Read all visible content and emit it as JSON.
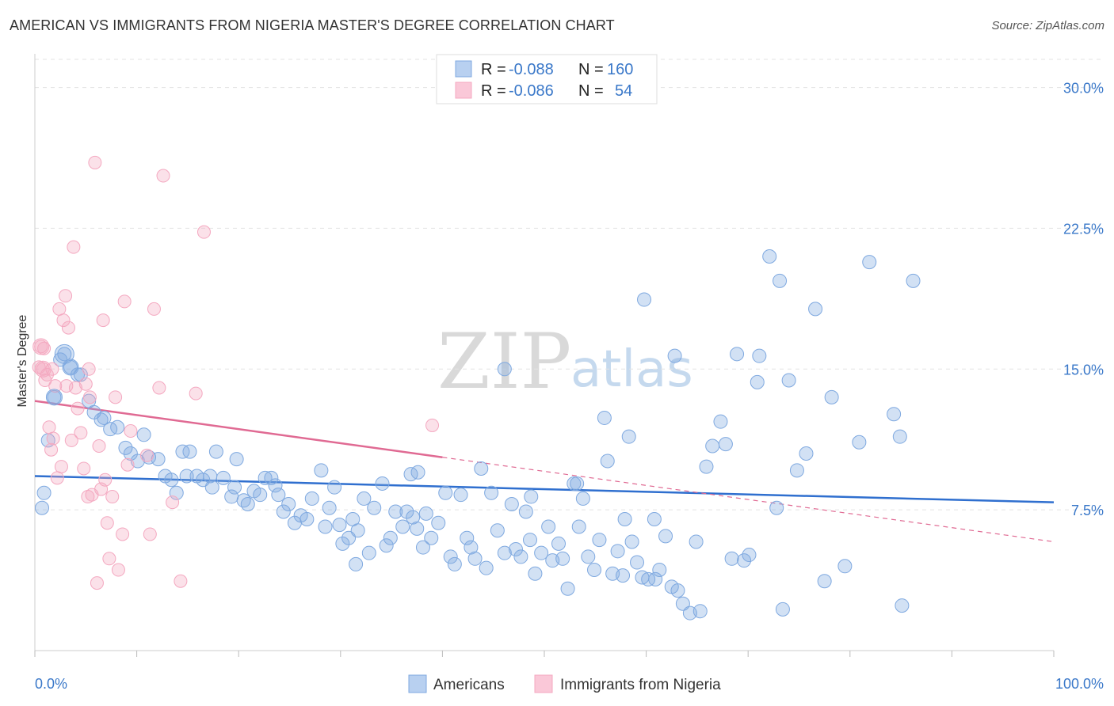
{
  "title": "AMERICAN VS IMMIGRANTS FROM NIGERIA MASTER'S DEGREE CORRELATION CHART",
  "source": "Source: ZipAtlas.com",
  "watermark": {
    "zip": "ZIP",
    "atlas": "atlas"
  },
  "legend": {
    "r_label": "R =",
    "n_label": "N =",
    "rows": [
      {
        "r": "-0.088",
        "n": "160"
      },
      {
        "r": "-0.086",
        "n": "54"
      }
    ]
  },
  "bottom_legend": [
    "Americans",
    "Immigrants from Nigeria"
  ],
  "chart_data": {
    "type": "scatter",
    "title": "AMERICAN VS IMMIGRANTS FROM NIGERIA MASTER'S DEGREE CORRELATION CHART",
    "xlabel": "",
    "ylabel": "Master's Degree",
    "xlim": [
      0,
      100
    ],
    "ylim": [
      0,
      31.5
    ],
    "x_tick_labels": [
      "0.0%",
      "100.0%"
    ],
    "y_ticks": [
      7.5,
      15.0,
      22.5,
      30.0
    ],
    "y_tick_labels": [
      "7.5%",
      "15.0%",
      "22.5%",
      "30.0%"
    ],
    "grid": true,
    "colors": {
      "americans": "#7fa9e0",
      "americans_line": "#2f6fcf",
      "nigeria": "#f4a8c0",
      "nigeria_line": "#e06a93",
      "tick": "#3a78c9"
    },
    "series": [
      {
        "name": "Americans",
        "trend": {
          "x0": 0,
          "y0": 9.3,
          "x1": 100,
          "y1": 7.9
        },
        "points": [
          [
            0.7,
            7.6
          ],
          [
            0.9,
            8.4
          ],
          [
            1.3,
            11.2
          ],
          [
            1.9,
            13.5
          ],
          [
            2.5,
            15.5
          ],
          [
            2.9,
            15.8
          ],
          [
            3.5,
            15.1
          ],
          [
            4.2,
            14.7
          ],
          [
            4.5,
            14.7
          ],
          [
            5.3,
            13.3
          ],
          [
            5.8,
            12.7
          ],
          [
            6.5,
            12.3
          ],
          [
            6.8,
            12.4
          ],
          [
            7.4,
            11.8
          ],
          [
            8.1,
            11.9
          ],
          [
            8.9,
            10.8
          ],
          [
            9.4,
            10.5
          ],
          [
            10.1,
            10.1
          ],
          [
            10.7,
            11.5
          ],
          [
            11.2,
            10.3
          ],
          [
            12.1,
            10.2
          ],
          [
            12.8,
            9.3
          ],
          [
            13.4,
            9.1
          ],
          [
            13.9,
            8.4
          ],
          [
            14.5,
            10.6
          ],
          [
            14.9,
            9.3
          ],
          [
            15.2,
            10.6
          ],
          [
            15.9,
            9.3
          ],
          [
            16.5,
            9.1
          ],
          [
            17.2,
            9.3
          ],
          [
            17.4,
            8.7
          ],
          [
            17.8,
            10.6
          ],
          [
            18.5,
            9.2
          ],
          [
            19.3,
            8.2
          ],
          [
            19.8,
            10.2
          ],
          [
            20.5,
            8.0
          ],
          [
            20.9,
            7.8
          ],
          [
            21.5,
            8.5
          ],
          [
            22.1,
            8.3
          ],
          [
            22.6,
            9.2
          ],
          [
            23.2,
            9.2
          ],
          [
            23.6,
            8.8
          ],
          [
            23.9,
            8.3
          ],
          [
            24.4,
            7.4
          ],
          [
            24.9,
            7.8
          ],
          [
            25.5,
            6.8
          ],
          [
            26.1,
            7.2
          ],
          [
            26.7,
            7.0
          ],
          [
            27.2,
            8.1
          ],
          [
            28.1,
            9.6
          ],
          [
            28.5,
            6.6
          ],
          [
            28.9,
            7.6
          ],
          [
            29.4,
            8.7
          ],
          [
            30.2,
            5.7
          ],
          [
            30.8,
            6.0
          ],
          [
            31.2,
            7.0
          ],
          [
            31.7,
            6.4
          ],
          [
            32.3,
            8.1
          ],
          [
            32.8,
            5.2
          ],
          [
            33.3,
            7.6
          ],
          [
            34.1,
            8.9
          ],
          [
            34.5,
            5.6
          ],
          [
            34.9,
            6.0
          ],
          [
            35.4,
            7.4
          ],
          [
            36.1,
            6.6
          ],
          [
            36.5,
            7.4
          ],
          [
            37.1,
            7.1
          ],
          [
            37.5,
            6.5
          ],
          [
            38.1,
            5.5
          ],
          [
            38.4,
            7.3
          ],
          [
            38.9,
            6.0
          ],
          [
            39.6,
            6.8
          ],
          [
            40.3,
            8.4
          ],
          [
            40.8,
            5.0
          ],
          [
            41.2,
            4.6
          ],
          [
            41.8,
            8.3
          ],
          [
            42.4,
            6.0
          ],
          [
            43.2,
            4.9
          ],
          [
            43.8,
            9.7
          ],
          [
            44.3,
            4.4
          ],
          [
            44.8,
            8.4
          ],
          [
            45.4,
            6.4
          ],
          [
            46.1,
            5.2
          ],
          [
            46.8,
            7.8
          ],
          [
            47.2,
            5.4
          ],
          [
            47.7,
            5.0
          ],
          [
            48.2,
            7.4
          ],
          [
            48.6,
            5.9
          ],
          [
            49.1,
            4.1
          ],
          [
            49.7,
            5.2
          ],
          [
            50.4,
            6.6
          ],
          [
            50.8,
            4.8
          ],
          [
            51.4,
            5.7
          ],
          [
            51.8,
            4.9
          ],
          [
            52.3,
            3.3
          ],
          [
            52.9,
            8.9
          ],
          [
            53.4,
            6.6
          ],
          [
            53.8,
            8.1
          ],
          [
            54.3,
            5.0
          ],
          [
            54.9,
            4.3
          ],
          [
            55.4,
            5.9
          ],
          [
            55.9,
            12.4
          ],
          [
            56.2,
            10.1
          ],
          [
            56.7,
            4.1
          ],
          [
            57.2,
            5.3
          ],
          [
            57.7,
            4.0
          ],
          [
            58.3,
            11.4
          ],
          [
            58.6,
            5.8
          ],
          [
            59.1,
            4.7
          ],
          [
            59.6,
            3.9
          ],
          [
            60.2,
            3.8
          ],
          [
            60.8,
            7.0
          ],
          [
            61.3,
            4.3
          ],
          [
            61.9,
            6.1
          ],
          [
            62.5,
            3.4
          ],
          [
            63.1,
            3.2
          ],
          [
            63.6,
            2.5
          ],
          [
            64.3,
            2.0
          ],
          [
            64.9,
            5.8
          ],
          [
            65.3,
            2.1
          ],
          [
            65.9,
            9.8
          ],
          [
            66.5,
            10.9
          ],
          [
            67.3,
            12.2
          ],
          [
            68.4,
            4.9
          ],
          [
            68.9,
            15.8
          ],
          [
            69.6,
            4.8
          ],
          [
            70.1,
            5.1
          ],
          [
            70.9,
            14.3
          ],
          [
            72.1,
            21.0
          ],
          [
            72.8,
            7.6
          ],
          [
            73.4,
            2.2
          ],
          [
            74.8,
            9.6
          ],
          [
            75.7,
            10.5
          ],
          [
            76.6,
            18.2
          ],
          [
            77.5,
            3.7
          ],
          [
            78.2,
            13.5
          ],
          [
            79.5,
            4.5
          ],
          [
            80.9,
            11.1
          ],
          [
            81.9,
            20.7
          ],
          [
            84.3,
            12.6
          ],
          [
            84.9,
            11.4
          ],
          [
            85.1,
            2.4
          ],
          [
            86.2,
            19.7
          ],
          [
            67.8,
            11.0
          ],
          [
            60.9,
            3.8
          ],
          [
            59.8,
            18.7
          ],
          [
            46.1,
            15.0
          ],
          [
            37.6,
            9.5
          ],
          [
            31.5,
            4.6
          ],
          [
            74.0,
            14.4
          ],
          [
            73.1,
            19.7
          ],
          [
            71.1,
            15.7
          ],
          [
            62.8,
            15.7
          ],
          [
            57.9,
            7.0
          ],
          [
            53.2,
            8.9
          ],
          [
            48.7,
            8.2
          ],
          [
            36.9,
            9.4
          ],
          [
            42.8,
            5.5
          ],
          [
            29.9,
            6.7
          ],
          [
            19.6,
            8.7
          ]
        ]
      },
      {
        "name": "Immigrants from Nigeria",
        "trend": {
          "x0": 0,
          "y0": 13.3,
          "x1": 40,
          "y1": 10.3
        },
        "trend_dashed": {
          "x0": 40,
          "y0": 10.3,
          "x1": 100,
          "y1": 5.8
        },
        "points": [
          [
            0.4,
            15.1
          ],
          [
            0.6,
            16.2
          ],
          [
            0.8,
            15.0
          ],
          [
            1.0,
            14.4
          ],
          [
            1.2,
            14.7
          ],
          [
            1.4,
            11.9
          ],
          [
            1.6,
            10.7
          ],
          [
            1.8,
            11.3
          ],
          [
            2.0,
            14.1
          ],
          [
            2.2,
            9.2
          ],
          [
            2.4,
            18.2
          ],
          [
            2.6,
            9.8
          ],
          [
            2.8,
            17.6
          ],
          [
            3.0,
            18.9
          ],
          [
            3.3,
            17.2
          ],
          [
            3.6,
            11.2
          ],
          [
            3.8,
            21.5
          ],
          [
            4.0,
            14.0
          ],
          [
            4.2,
            12.9
          ],
          [
            4.5,
            11.6
          ],
          [
            4.8,
            9.7
          ],
          [
            5.0,
            14.2
          ],
          [
            5.2,
            8.2
          ],
          [
            5.4,
            13.5
          ],
          [
            5.6,
            8.3
          ],
          [
            5.9,
            26.0
          ],
          [
            6.1,
            3.6
          ],
          [
            6.3,
            10.9
          ],
          [
            6.5,
            8.6
          ],
          [
            6.7,
            17.6
          ],
          [
            6.9,
            9.1
          ],
          [
            7.1,
            6.8
          ],
          [
            7.3,
            4.9
          ],
          [
            7.6,
            8.2
          ],
          [
            7.9,
            13.5
          ],
          [
            8.2,
            4.3
          ],
          [
            8.6,
            6.2
          ],
          [
            8.8,
            18.6
          ],
          [
            9.1,
            9.9
          ],
          [
            9.4,
            11.7
          ],
          [
            11.3,
            6.2
          ],
          [
            11.7,
            18.2
          ],
          [
            12.2,
            14.0
          ],
          [
            12.6,
            25.3
          ],
          [
            13.5,
            7.9
          ],
          [
            14.3,
            3.7
          ],
          [
            15.8,
            13.7
          ],
          [
            16.6,
            22.3
          ],
          [
            11.0,
            10.4
          ],
          [
            39.0,
            12.0
          ],
          [
            0.9,
            16.1
          ],
          [
            1.7,
            15.0
          ],
          [
            3.1,
            14.1
          ],
          [
            5.3,
            15.0
          ]
        ]
      }
    ]
  }
}
